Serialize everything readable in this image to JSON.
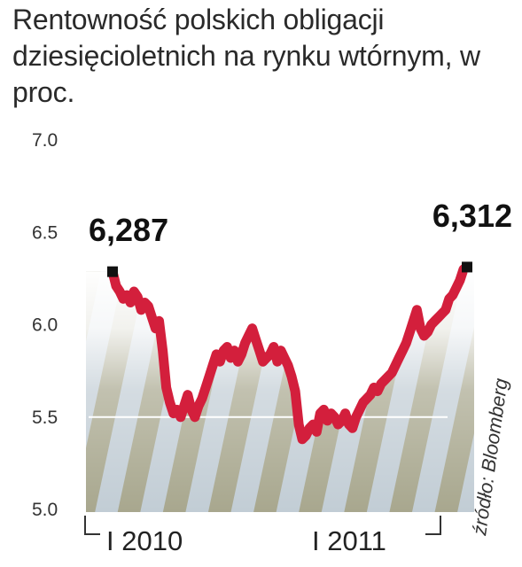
{
  "chart_data": {
    "type": "line",
    "title": "Rentowność polskich obligacji dziesięcioletnich na rynku wtórnym, w proc.",
    "y_ticks": [
      "7.0",
      "6.5",
      "6.0",
      "5.5",
      "5.0"
    ],
    "ylim": [
      5.0,
      7.0
    ],
    "x_labels": [
      "I 2010",
      "I 2011"
    ],
    "source": "źródło: Bloomberg",
    "annotations": [
      {
        "label": "6,287",
        "value": 6.287,
        "position": "start"
      },
      {
        "label": "6,312",
        "value": 6.312,
        "position": "end"
      }
    ],
    "series": [
      {
        "values": [
          6.287,
          6.21,
          6.18,
          6.14,
          6.16,
          6.12,
          6.18,
          6.15,
          6.08,
          6.12,
          6.1,
          6.04,
          5.98,
          6.02,
          5.86,
          5.66,
          5.58,
          5.52,
          5.54,
          5.5,
          5.56,
          5.62,
          5.54,
          5.5,
          5.56,
          5.6,
          5.66,
          5.72,
          5.78,
          5.84,
          5.8,
          5.86,
          5.88,
          5.82,
          5.86,
          5.8,
          5.84,
          5.9,
          5.94,
          5.98,
          5.92,
          5.86,
          5.8,
          5.82,
          5.84,
          5.88,
          5.8,
          5.86,
          5.82,
          5.78,
          5.72,
          5.64,
          5.46,
          5.38,
          5.4,
          5.44,
          5.46,
          5.42,
          5.52,
          5.54,
          5.48,
          5.52,
          5.5,
          5.46,
          5.48,
          5.52,
          5.46,
          5.44,
          5.5,
          5.54,
          5.58,
          5.6,
          5.62,
          5.66,
          5.64,
          5.68,
          5.7,
          5.72,
          5.74,
          5.78,
          5.82,
          5.86,
          5.9,
          5.96,
          6.02,
          6.08,
          5.98,
          5.94,
          5.96,
          6.0,
          6.02,
          6.04,
          6.06,
          6.08,
          6.14,
          6.16,
          6.2,
          6.24,
          6.3,
          6.312
        ]
      }
    ],
    "colors": {
      "line": "#d31f3c",
      "marker": "#111111",
      "grid": "#ffffff",
      "stripe_dark": "#a6a58c",
      "stripe_light": "#c4cfd6",
      "axis": "#333333"
    }
  }
}
